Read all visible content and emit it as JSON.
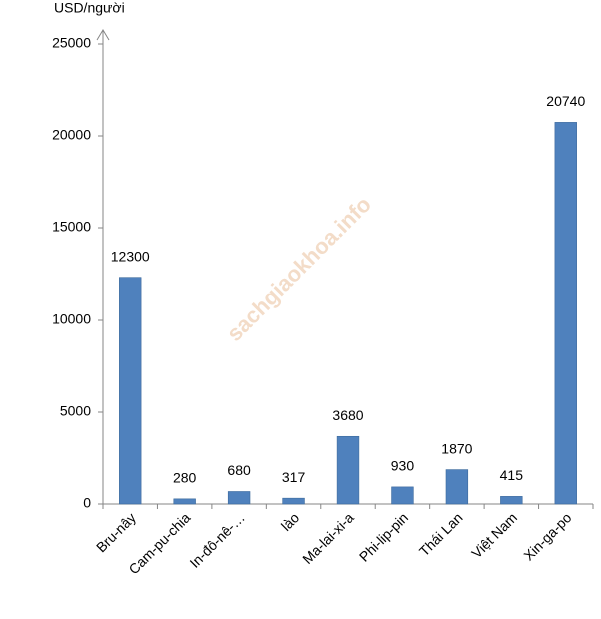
{
  "chart_data": {
    "type": "bar",
    "y_axis_label": "USD/người",
    "watermark": "sachgiaokhoa.info",
    "categories": [
      "Bru-nây",
      "Cam-pu-chia",
      "In-đô-nê-…",
      "lào",
      "Ma-lai-xi-a",
      "Phi-lip-pin",
      "Thái Lan",
      "Việt Nam",
      "Xin-ga-po"
    ],
    "values": [
      12300,
      280,
      680,
      317,
      3680,
      930,
      1870,
      415,
      20740
    ],
    "color": "#4f81bd",
    "ylim": [
      0,
      25000
    ],
    "yticks": [
      0,
      5000,
      10000,
      15000,
      20000,
      25000
    ],
    "grid": false
  }
}
